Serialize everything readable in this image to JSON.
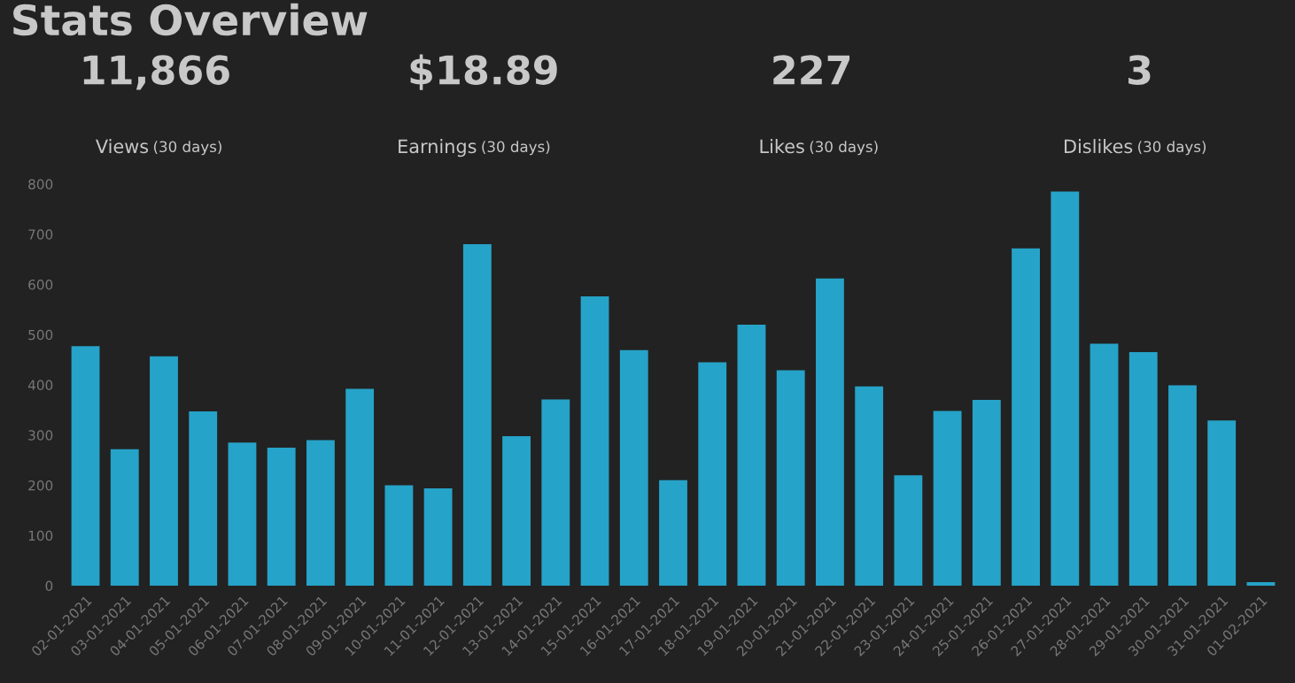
{
  "chart_data": [
    {
      "type": "other",
      "title": "Stats Overview",
      "annotations": [
        "11,866",
        "Views",
        "(30 days)",
        "$18.89",
        "Earnings",
        "(30 days)",
        "227",
        "Likes",
        "(30 days)",
        "3",
        "Dislikes",
        "(30 days)"
      ]
    },
    {
      "type": "bar",
      "color": "#26a3c8",
      "categories": [
        "02-01-2021",
        "03-01-2021",
        "04-01-2021",
        "05-01-2021",
        "06-01-2021",
        "07-01-2021",
        "08-01-2021",
        "09-01-2021",
        "10-01-2021",
        "11-01-2021",
        "12-01-2021",
        "13-01-2021",
        "14-01-2021",
        "15-01-2021",
        "16-01-2021",
        "17-01-2021",
        "18-01-2021",
        "19-01-2021",
        "20-01-2021",
        "21-01-2021",
        "22-01-2021",
        "23-01-2021",
        "24-01-2021",
        "25-01-2021",
        "26-01-2021",
        "27-01-2021",
        "28-01-2021",
        "29-01-2021",
        "30-01-2021",
        "31-01-2021",
        "01-02-2021"
      ],
      "values": [
        477,
        272,
        457,
        347,
        285,
        275,
        290,
        392,
        200,
        194,
        680,
        298,
        371,
        576,
        469,
        210,
        445,
        520,
        429,
        612,
        397,
        220,
        348,
        370,
        672,
        785,
        482,
        465,
        399,
        329,
        7
      ],
      "ylim": [
        0,
        800
      ],
      "yticks": [
        0,
        100,
        200,
        300,
        400,
        500,
        600,
        700,
        800
      ],
      "grid": false
    }
  ]
}
